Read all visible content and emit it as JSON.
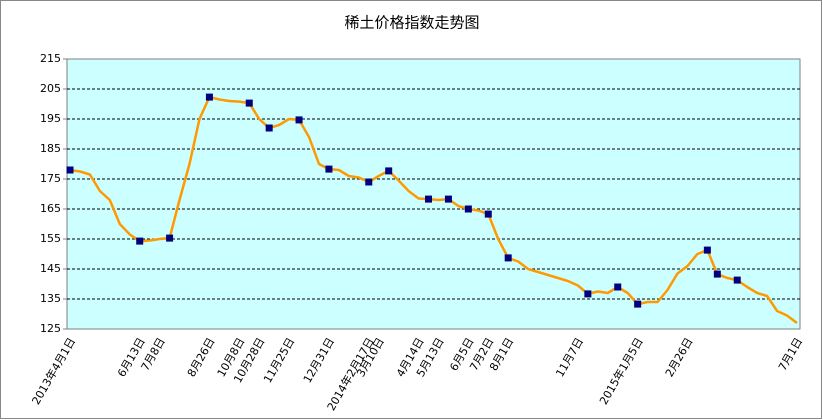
{
  "chart_data": {
    "type": "line",
    "title": "稀土价格指数走势图",
    "categories": [
      "2013年4月1日",
      null,
      null,
      null,
      null,
      null,
      null,
      "6月13日",
      null,
      "7月8日",
      null,
      null,
      null,
      null,
      "8月26日",
      null,
      null,
      "10月8日",
      null,
      "10月28日",
      null,
      null,
      "11月25日",
      null,
      null,
      null,
      "12月31日",
      null,
      null,
      null,
      "2014年2月17日",
      "3月10日",
      null,
      null,
      null,
      "4月14日",
      null,
      "5月13日",
      null,
      null,
      "6月5日",
      null,
      "7月2日",
      null,
      "8月1日",
      null,
      null,
      null,
      null,
      null,
      null,
      "11月7日",
      null,
      null,
      null,
      null,
      null,
      "2015年1月5日",
      null,
      null,
      null,
      null,
      "2月26日",
      null,
      null,
      null,
      null,
      null,
      null,
      null,
      null,
      null,
      null,
      "7月1日"
    ],
    "values": [
      178,
      177.5,
      176.5,
      171,
      168,
      160,
      156.5,
      154.3,
      154.5,
      155,
      155.3,
      168,
      180,
      195,
      202.3,
      201.5,
      201,
      200.8,
      200.3,
      195,
      192,
      193,
      195,
      194.7,
      189,
      180,
      178.3,
      178,
      176,
      175.5,
      174,
      176,
      177.7,
      174.5,
      171,
      168.5,
      168.3,
      168,
      168.3,
      166,
      165,
      164.5,
      163.3,
      155,
      148.7,
      147.5,
      145,
      144,
      143,
      142,
      141,
      139.5,
      136.7,
      137.5,
      137,
      139,
      137,
      133.3,
      134,
      134,
      138,
      143.5,
      146,
      150,
      151.3,
      143.3,
      142,
      141.3,
      139,
      137,
      136,
      131,
      129.5,
      127
    ],
    "markers": [
      0,
      7,
      10,
      14,
      18,
      20,
      23,
      26,
      30,
      32,
      36,
      38,
      40,
      42,
      44,
      52,
      55,
      57,
      64,
      65,
      67
    ],
    "color": "#ff9900",
    "marker_color": "#000080",
    "plot_background": "#ccffff",
    "ylim": [
      125,
      215
    ],
    "yticks": [
      125,
      135,
      145,
      155,
      165,
      175,
      185,
      195,
      205,
      215
    ],
    "grid": true
  }
}
